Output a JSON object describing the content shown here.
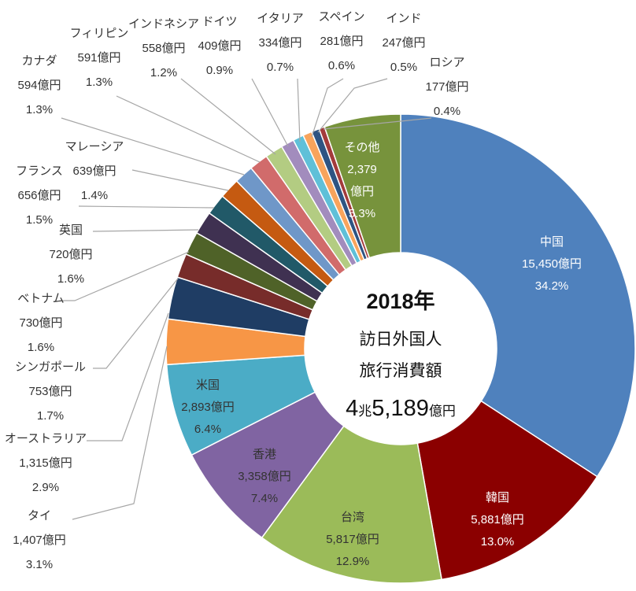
{
  "chart_data": {
    "type": "pie",
    "title": "",
    "center": {
      "year": "2018年",
      "line1": "訪日外国人",
      "line2": "旅行消費額",
      "total_num1": "4",
      "total_unit1": "兆",
      "total_num2": "5,189",
      "total_unit2": "億円"
    },
    "slices": [
      {
        "name": "中国",
        "value_label": "15,450億円",
        "value": 15450,
        "pct": "34.2%",
        "color": "#4f81bd"
      },
      {
        "name": "韓国",
        "value_label": "5,881億円",
        "value": 5881,
        "pct": "13.0%",
        "color": "#8b0000"
      },
      {
        "name": "台湾",
        "value_label": "5,817億円",
        "value": 5817,
        "pct": "12.9%",
        "color": "#9bbb59"
      },
      {
        "name": "香港",
        "value_label": "3,358億円",
        "value": 3358,
        "pct": "7.4%",
        "color": "#8064a2"
      },
      {
        "name": "米国",
        "value_label": "2,893億円",
        "value": 2893,
        "pct": "6.4%",
        "color": "#4bacc6"
      },
      {
        "name": "タイ",
        "value_label": "1,407億円",
        "value": 1407,
        "pct": "3.1%",
        "color": "#f79646"
      },
      {
        "name": "オーストラリア",
        "value_label": "1,315億円",
        "value": 1315,
        "pct": "2.9%",
        "color": "#1f3d64"
      },
      {
        "name": "シンガポール",
        "value_label": "753億円",
        "value": 753,
        "pct": "1.7%",
        "color": "#772c2a"
      },
      {
        "name": "ベトナム",
        "value_label": "730億円",
        "value": 730,
        "pct": "1.6%",
        "color": "#4f6228"
      },
      {
        "name": "英国",
        "value_label": "720億円",
        "value": 720,
        "pct": "1.6%",
        "color": "#3f3151"
      },
      {
        "name": "フランス",
        "value_label": "656億円",
        "value": 656,
        "pct": "1.5%",
        "color": "#215968"
      },
      {
        "name": "マレーシア",
        "value_label": "639億円",
        "value": 639,
        "pct": "1.4%",
        "color": "#c55a11"
      },
      {
        "name": "カナダ",
        "value_label": "594億円",
        "value": 594,
        "pct": "1.3%",
        "color": "#6f97c8"
      },
      {
        "name": "フィリピン",
        "value_label": "591億円",
        "value": 591,
        "pct": "1.3%",
        "color": "#d16b6b"
      },
      {
        "name": "インドネシア",
        "value_label": "558億円",
        "value": 558,
        "pct": "1.2%",
        "color": "#b3cc82"
      },
      {
        "name": "ドイツ",
        "value_label": "409億円",
        "value": 409,
        "pct": "0.9%",
        "color": "#a28cbd"
      },
      {
        "name": "イタリア",
        "value_label": "334億円",
        "value": 334,
        "pct": "0.7%",
        "color": "#5fc0d8"
      },
      {
        "name": "スペイン",
        "value_label": "281億円",
        "value": 281,
        "pct": "0.6%",
        "color": "#f8a45c"
      },
      {
        "name": "インド",
        "value_label": "247億円",
        "value": 247,
        "pct": "0.5%",
        "color": "#2e5483"
      },
      {
        "name": "ロシア",
        "value_label": "177億円",
        "value": 177,
        "pct": "0.4%",
        "color": "#a33b3b"
      },
      {
        "name": "その他",
        "value_label": "2,379",
        "value_label2": "億円",
        "value": 2379,
        "pct": "5.3%",
        "color": "#77933c"
      }
    ]
  }
}
